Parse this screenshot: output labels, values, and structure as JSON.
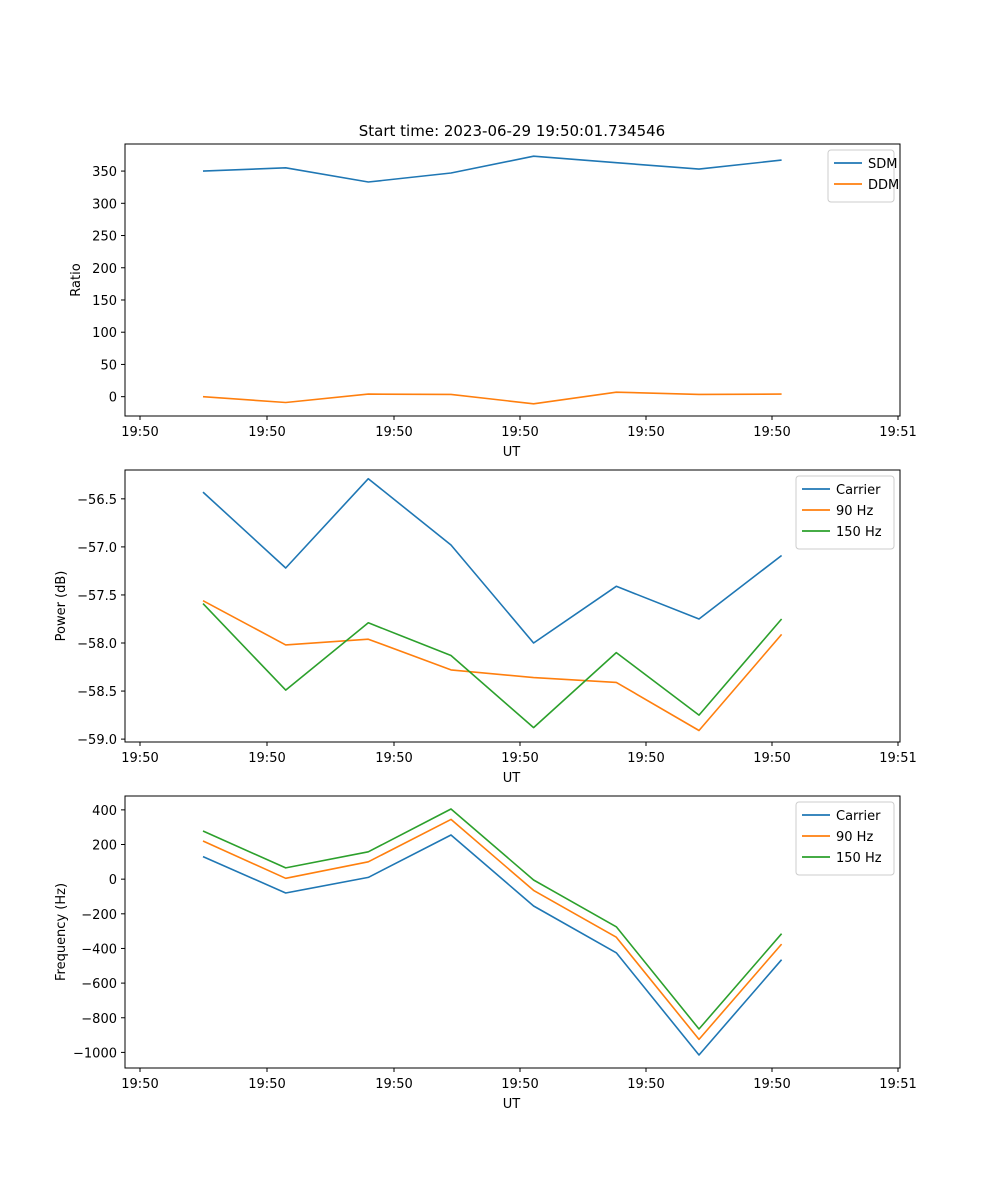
{
  "figure_title": "Start time: 2023-06-29 19:50:01.734546",
  "chart_data": [
    {
      "type": "line",
      "title": "Start time: 2023-06-29 19:50:01.734546",
      "xlabel": "UT",
      "ylabel": "Ratio",
      "x": [
        1,
        2,
        3,
        4,
        5,
        6,
        7,
        8
      ],
      "xlim": [
        0.78,
        9.2
      ],
      "ylim": [
        -30,
        392
      ],
      "yticks": [
        0,
        50,
        100,
        150,
        200,
        250,
        300,
        350
      ],
      "xticks": [
        1,
        2,
        3,
        4,
        5,
        6,
        7,
        8
      ],
      "xtick_values": [
        0,
        1.55,
        3.1,
        4.65,
        6.2,
        7.75,
        9.2
      ],
      "xtick_labels": [
        "19:50",
        "19:50",
        "19:50",
        "19:50",
        "19:50",
        "19:50",
        "19:51"
      ],
      "legend_position": "top-right",
      "series": [
        {
          "name": "SDM",
          "color": "#1f77b4",
          "values": [
            350,
            355,
            333,
            347,
            373,
            363,
            353,
            367
          ]
        },
        {
          "name": "DDM",
          "color": "#ff7f0e",
          "values": [
            0,
            -9,
            4,
            3.5,
            -11,
            7,
            3.5,
            4
          ]
        }
      ]
    },
    {
      "type": "line",
      "title": "",
      "xlabel": "UT",
      "ylabel": "Power (dB)",
      "ylim": [
        -59.03,
        -56.2
      ],
      "yticks": [
        -59.0,
        -58.5,
        -58.0,
        -57.5,
        -57.0,
        -56.5
      ],
      "ytick_labels": [
        "−59.0",
        "−58.5",
        "−58.0",
        "−57.5",
        "−57.0",
        "−56.5"
      ],
      "xtick_labels": [
        "19:50",
        "19:50",
        "19:50",
        "19:50",
        "19:50",
        "19:50",
        "19:51"
      ],
      "legend_position": "top-right",
      "series": [
        {
          "name": "Carrier",
          "color": "#1f77b4",
          "values": [
            -56.43,
            -57.22,
            -56.29,
            -56.98,
            -58.0,
            -57.41,
            -57.75,
            -57.09
          ]
        },
        {
          "name": "90 Hz",
          "color": "#ff7f0e",
          "values": [
            -57.56,
            -58.02,
            -57.96,
            -58.28,
            -58.36,
            -58.41,
            -58.91,
            -57.91
          ]
        },
        {
          "name": "150 Hz",
          "color": "#2ca02c",
          "values": [
            -57.59,
            -58.49,
            -57.79,
            -58.13,
            -58.88,
            -58.1,
            -58.75,
            -57.75
          ]
        }
      ]
    },
    {
      "type": "line",
      "title": "",
      "xlabel": "UT",
      "ylabel": "Frequency (Hz)",
      "ylim": [
        -1090,
        480
      ],
      "yticks": [
        -1000,
        -800,
        -600,
        -400,
        -200,
        0,
        200,
        400
      ],
      "ytick_labels": [
        "−1000",
        "−800",
        "−600",
        "−400",
        "−200",
        "0",
        "200",
        "400"
      ],
      "xtick_labels": [
        "19:50",
        "19:50",
        "19:50",
        "19:50",
        "19:50",
        "19:50",
        "19:51"
      ],
      "legend_position": "top-right",
      "series": [
        {
          "name": "Carrier",
          "color": "#1f77b4",
          "values": [
            130,
            -80,
            10,
            255,
            -155,
            -425,
            -1015,
            -465
          ]
        },
        {
          "name": "90 Hz",
          "color": "#ff7f0e",
          "values": [
            220,
            5,
            100,
            345,
            -65,
            -335,
            -925,
            -375
          ]
        },
        {
          "name": "150 Hz",
          "color": "#2ca02c",
          "values": [
            278,
            65,
            158,
            405,
            -5,
            -275,
            -865,
            -315
          ]
        }
      ]
    }
  ]
}
